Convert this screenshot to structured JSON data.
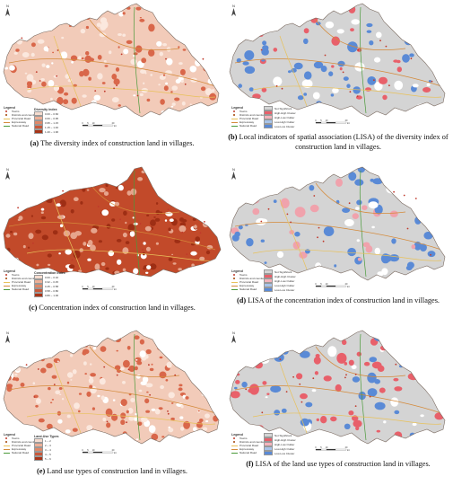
{
  "legend_common": {
    "title": "Legend",
    "items": [
      {
        "label": "Towns",
        "color": "#c0392b"
      },
      {
        "label": "Districts and counties",
        "color": "#a04000"
      },
      {
        "label": "Provincial Road",
        "color": "#e8c15a"
      },
      {
        "label": "Expressway",
        "color": "#d48a3a"
      },
      {
        "label": "National Road",
        "color": "#4a9a3a"
      }
    ]
  },
  "panels": [
    {
      "caption_letter": "(a)",
      "caption_text": " The diversity index of construction land in villages.",
      "class_title": "Diversity index",
      "classes": [
        {
          "label": "0.00 ~ 0.60",
          "color": "#f6dccf"
        },
        {
          "label": "0.60 ~ 0.95",
          "color": "#eeb097"
        },
        {
          "label": "0.95 ~ 1.15",
          "color": "#e08868"
        },
        {
          "label": "1.15 ~ 1.40",
          "color": "#c9583a"
        },
        {
          "label": "1.40 ~ 1.90",
          "color": "#a83418"
        }
      ],
      "map_colors": {
        "base": "#f2cbb9",
        "dark": "#d9674a",
        "light": "#fbe8de"
      }
    },
    {
      "caption_letter": "(b)",
      "caption_text": " Local indicators of spatial association (LISA) of the diversity index of construction land in villages.",
      "class_title": "",
      "classes": [
        {
          "label": "Not Significant",
          "color": "#d4d4d4"
        },
        {
          "label": "High-High Cluster",
          "color": "#e8606a"
        },
        {
          "label": "High-Low Outlier",
          "color": "#f4b4bc"
        },
        {
          "label": "Low-High Outlier",
          "color": "#a8c4ea"
        },
        {
          "label": "Low-Low Cluster",
          "color": "#5a8ad6"
        }
      ],
      "map_colors": {
        "base": "#d4d4d4",
        "hh": "#e8606a",
        "ll": "#5a8ad6"
      }
    },
    {
      "caption_letter": "(c)",
      "caption_text": " Concentration index of construction land in villages.",
      "class_title": "Concentration Index",
      "classes": [
        {
          "label": "0.00 ~ 0.32",
          "color": "#f6dccf"
        },
        {
          "label": "0.32 ~ 0.45",
          "color": "#eeb097"
        },
        {
          "label": "0.45 ~ 0.58",
          "color": "#e08868"
        },
        {
          "label": "0.58 ~ 0.80",
          "color": "#c9583a"
        },
        {
          "label": "0.80 ~ 1.00",
          "color": "#a83418"
        }
      ],
      "map_colors": {
        "base": "#c24a2a",
        "dark": "#9e2e14",
        "light": "#e6a48c"
      }
    },
    {
      "caption_letter": "(d)",
      "caption_text": " LISA of the concentration index of construction land in villages.",
      "class_title": "",
      "classes": [
        {
          "label": "Not Significant",
          "color": "#d4d4d4"
        },
        {
          "label": "High-High Cluster",
          "color": "#e8606a"
        },
        {
          "label": "High-Low Outlier",
          "color": "#f4b4bc"
        },
        {
          "label": "Low-High Outlier",
          "color": "#a8c4ea"
        },
        {
          "label": "Low-Low Cluster",
          "color": "#5a8ad6"
        }
      ],
      "map_colors": {
        "base": "#d4d4d4",
        "hh": "#f0a2ac",
        "ll": "#5a8ad6"
      }
    },
    {
      "caption_letter": "(e)",
      "caption_text": " Land use types of construction land in villages.",
      "class_title": "Land-Use Types",
      "classes": [
        {
          "label": "1 ~ 2",
          "color": "#f6dccf"
        },
        {
          "label": "2 ~ 3",
          "color": "#eeb097"
        },
        {
          "label": "3 ~ 4",
          "color": "#e08868"
        },
        {
          "label": "4 ~ 5",
          "color": "#c9583a"
        },
        {
          "label": "5 ~ 6",
          "color": "#a83418"
        }
      ],
      "map_colors": {
        "base": "#f2cbb9",
        "dark": "#d9674a",
        "light": "#fbe8de"
      }
    },
    {
      "caption_letter": "(f)",
      "caption_text": " LISA of the land use types of construction land in villages.",
      "class_title": "",
      "classes": [
        {
          "label": "Not Significant",
          "color": "#d4d4d4"
        },
        {
          "label": "High-High Cluster",
          "color": "#e8606a"
        },
        {
          "label": "High-Low Outlier",
          "color": "#f4b4bc"
        },
        {
          "label": "Low-High Outlier",
          "color": "#a8c4ea"
        },
        {
          "label": "Low-Low Cluster",
          "color": "#5a8ad6"
        }
      ],
      "map_colors": {
        "base": "#d4d4d4",
        "hh": "#e8606a",
        "ll": "#5a8ad6"
      }
    }
  ],
  "north_label": "N",
  "scale": {
    "labels": [
      "0",
      "5",
      "10",
      "20"
    ],
    "unit": "km"
  }
}
